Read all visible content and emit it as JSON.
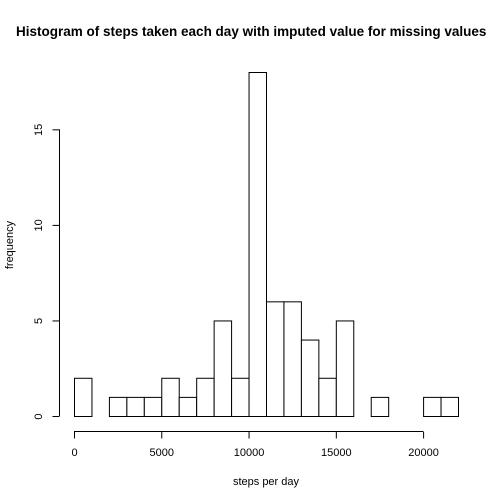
{
  "chart_data": {
    "type": "bar",
    "title": "Histogram of steps taken each day with imputed value for missing values",
    "xlabel": "steps per day",
    "ylabel": "frequency",
    "xlim": [
      0,
      22000
    ],
    "ylim": [
      0,
      18
    ],
    "bin_width": 1000,
    "bins": [
      {
        "start": 0,
        "end": 1000,
        "count": 2
      },
      {
        "start": 1000,
        "end": 2000,
        "count": 0
      },
      {
        "start": 2000,
        "end": 3000,
        "count": 1
      },
      {
        "start": 3000,
        "end": 4000,
        "count": 1
      },
      {
        "start": 4000,
        "end": 5000,
        "count": 1
      },
      {
        "start": 5000,
        "end": 6000,
        "count": 2
      },
      {
        "start": 6000,
        "end": 7000,
        "count": 1
      },
      {
        "start": 7000,
        "end": 8000,
        "count": 2
      },
      {
        "start": 8000,
        "end": 9000,
        "count": 5
      },
      {
        "start": 9000,
        "end": 10000,
        "count": 2
      },
      {
        "start": 10000,
        "end": 11000,
        "count": 18
      },
      {
        "start": 11000,
        "end": 12000,
        "count": 6
      },
      {
        "start": 12000,
        "end": 13000,
        "count": 6
      },
      {
        "start": 13000,
        "end": 14000,
        "count": 4
      },
      {
        "start": 14000,
        "end": 15000,
        "count": 2
      },
      {
        "start": 15000,
        "end": 16000,
        "count": 5
      },
      {
        "start": 16000,
        "end": 17000,
        "count": 0
      },
      {
        "start": 17000,
        "end": 18000,
        "count": 1
      },
      {
        "start": 18000,
        "end": 19000,
        "count": 0
      },
      {
        "start": 19000,
        "end": 20000,
        "count": 0
      },
      {
        "start": 20000,
        "end": 21000,
        "count": 1
      },
      {
        "start": 21000,
        "end": 22000,
        "count": 1
      }
    ],
    "x_ticks": [
      {
        "value": 0,
        "label": "0"
      },
      {
        "value": 5000,
        "label": "5000"
      },
      {
        "value": 10000,
        "label": "10000"
      },
      {
        "value": 15000,
        "label": "15000"
      },
      {
        "value": 20000,
        "label": "20000"
      }
    ],
    "y_ticks": [
      {
        "value": 0,
        "label": "0"
      },
      {
        "value": 5,
        "label": "5"
      },
      {
        "value": 10,
        "label": "10"
      },
      {
        "value": 15,
        "label": "15"
      }
    ],
    "grid": false,
    "legend": "none"
  }
}
